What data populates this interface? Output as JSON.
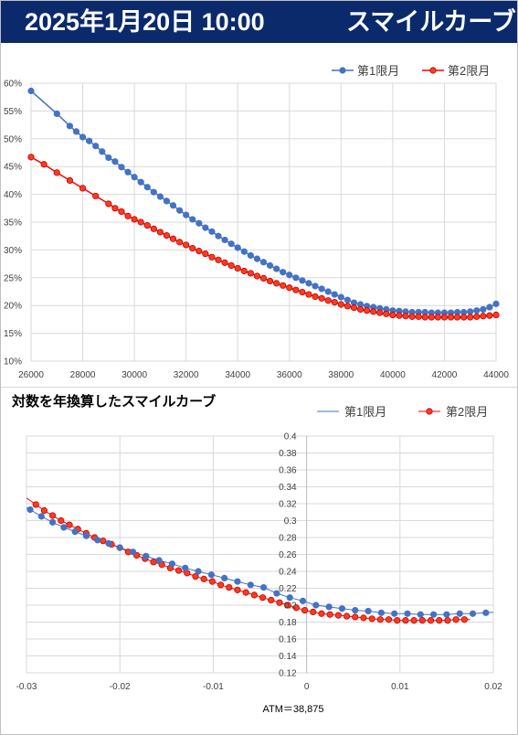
{
  "header": {
    "datetime": "2025年1月20日 10:00",
    "title": "スマイルカーブ"
  },
  "colors": {
    "header_bg": "#0b2a6b",
    "series1": "#4472c4",
    "series2": "#ff0000",
    "series2_fill": "#ff3b1f",
    "grid": "#d9d9d9"
  },
  "chart_data": [
    {
      "type": "line",
      "title": "",
      "legend_position": "top-right",
      "grid": true,
      "xlim": [
        26000,
        44000
      ],
      "ylim": [
        0.1,
        0.6
      ],
      "x_ticks": [
        "26000",
        "28000",
        "30000",
        "32000",
        "34000",
        "36000",
        "38000",
        "40000",
        "42000",
        "44000"
      ],
      "y_ticks": [
        "10%",
        "15%",
        "20%",
        "25%",
        "30%",
        "35%",
        "40%",
        "45%",
        "50%",
        "55%",
        "60%"
      ],
      "series": [
        {
          "name": "第1限月",
          "x": [
            26000,
            27000,
            27500,
            27750,
            28000,
            28250,
            28500,
            28750,
            29000,
            29250,
            29500,
            29750,
            30000,
            30250,
            30500,
            30750,
            31000,
            31250,
            31500,
            31750,
            32000,
            32250,
            32500,
            32750,
            33000,
            33250,
            33500,
            33750,
            34000,
            34250,
            34500,
            34750,
            35000,
            35250,
            35500,
            35750,
            36000,
            36250,
            36500,
            36750,
            37000,
            37250,
            37500,
            37750,
            38000,
            38250,
            38500,
            38750,
            39000,
            39250,
            39500,
            39750,
            40000,
            40250,
            40500,
            40750,
            41000,
            41250,
            41500,
            41750,
            42000,
            42250,
            42500,
            42750,
            43000,
            43250,
            43500,
            43750,
            44000
          ],
          "y": [
            0.586,
            0.545,
            0.523,
            0.513,
            0.503,
            0.496,
            0.487,
            0.477,
            0.466,
            0.459,
            0.449,
            0.44,
            0.431,
            0.422,
            0.413,
            0.404,
            0.396,
            0.388,
            0.38,
            0.371,
            0.363,
            0.355,
            0.348,
            0.34,
            0.333,
            0.325,
            0.318,
            0.311,
            0.304,
            0.297,
            0.29,
            0.284,
            0.278,
            0.272,
            0.266,
            0.26,
            0.255,
            0.25,
            0.245,
            0.24,
            0.235,
            0.23,
            0.225,
            0.22,
            0.215,
            0.21,
            0.205,
            0.202,
            0.199,
            0.197,
            0.195,
            0.193,
            0.191,
            0.19,
            0.189,
            0.188,
            0.188,
            0.188,
            0.187,
            0.187,
            0.187,
            0.187,
            0.188,
            0.188,
            0.189,
            0.191,
            0.193,
            0.197,
            0.203
          ]
        },
        {
          "name": "第2限月",
          "x": [
            26000,
            26500,
            27000,
            27500,
            28000,
            28500,
            29000,
            29250,
            29500,
            29750,
            30000,
            30250,
            30500,
            30750,
            31000,
            31250,
            31500,
            31750,
            32000,
            32250,
            32500,
            32750,
            33000,
            33250,
            33500,
            33750,
            34000,
            34250,
            34500,
            34750,
            35000,
            35250,
            35500,
            35750,
            36000,
            36250,
            36500,
            36750,
            37000,
            37250,
            37500,
            37750,
            38000,
            38250,
            38500,
            38750,
            39000,
            39250,
            39500,
            39750,
            40000,
            40250,
            40500,
            40750,
            41000,
            41250,
            41500,
            41750,
            42000,
            42250,
            42500,
            42750,
            43000,
            43250,
            43500,
            43750,
            44000
          ],
          "y": [
            0.467,
            0.454,
            0.439,
            0.425,
            0.411,
            0.397,
            0.383,
            0.375,
            0.369,
            0.361,
            0.355,
            0.35,
            0.344,
            0.338,
            0.332,
            0.326,
            0.32,
            0.314,
            0.309,
            0.303,
            0.298,
            0.293,
            0.287,
            0.282,
            0.277,
            0.272,
            0.267,
            0.262,
            0.258,
            0.253,
            0.249,
            0.244,
            0.24,
            0.236,
            0.232,
            0.228,
            0.224,
            0.22,
            0.216,
            0.213,
            0.209,
            0.206,
            0.202,
            0.199,
            0.196,
            0.193,
            0.191,
            0.189,
            0.187,
            0.185,
            0.183,
            0.182,
            0.181,
            0.18,
            0.18,
            0.179,
            0.179,
            0.179,
            0.179,
            0.179,
            0.179,
            0.179,
            0.179,
            0.18,
            0.181,
            0.182,
            0.183
          ]
        }
      ]
    },
    {
      "type": "scatter",
      "title": "対数を年換算したスマイルカーブ",
      "legend_position": "top-right",
      "grid": true,
      "xlim": [
        -0.03,
        0.02
      ],
      "ylim": [
        0.12,
        0.4
      ],
      "x_ticks": [
        "-0.03",
        "-0.02",
        "-0.01",
        "0",
        "0.01",
        "0.02"
      ],
      "y_ticks": [
        "0.12",
        "0.14",
        "0.16",
        "0.18",
        "0.2",
        "0.22",
        "0.24",
        "0.26",
        "0.28",
        "0.3",
        "0.32",
        "0.34",
        "0.36",
        "0.38",
        "0.4"
      ],
      "annotation": "ATM＝38,875",
      "series": [
        {
          "name": "第1限月",
          "line_range": [
            -0.03,
            0.02
          ],
          "x": [
            -0.0296,
            -0.0284,
            -0.0272,
            -0.026,
            -0.0248,
            -0.0236,
            -0.0224,
            -0.0212,
            -0.02,
            -0.0186,
            -0.0172,
            -0.0158,
            -0.0144,
            -0.013,
            -0.0116,
            -0.0102,
            -0.0088,
            -0.0074,
            -0.006,
            -0.0046,
            -0.0032,
            -0.0018,
            -0.0004,
            0.001,
            0.0024,
            0.0038,
            0.0052,
            0.0066,
            0.008,
            0.0094,
            0.0108,
            0.0122,
            0.0136,
            0.015,
            0.0164,
            0.0178,
            0.0192
          ],
          "y": [
            0.313,
            0.305,
            0.298,
            0.292,
            0.287,
            0.282,
            0.277,
            0.273,
            0.268,
            0.263,
            0.258,
            0.253,
            0.249,
            0.244,
            0.24,
            0.236,
            0.232,
            0.228,
            0.224,
            0.221,
            0.214,
            0.209,
            0.205,
            0.2,
            0.198,
            0.196,
            0.194,
            0.193,
            0.191,
            0.19,
            0.19,
            0.189,
            0.189,
            0.189,
            0.19,
            0.19,
            0.191
          ]
        },
        {
          "name": "第2限月",
          "line_range": [
            -0.03,
            0.0175
          ],
          "x": [
            -0.029,
            -0.0281,
            -0.0272,
            -0.0263,
            -0.0254,
            -0.0245,
            -0.0236,
            -0.0227,
            -0.0218,
            -0.0209,
            -0.02,
            -0.0191,
            -0.0182,
            -0.0173,
            -0.0164,
            -0.0155,
            -0.0146,
            -0.0137,
            -0.0128,
            -0.0119,
            -0.011,
            -0.0101,
            -0.0092,
            -0.0083,
            -0.0074,
            -0.0065,
            -0.0056,
            -0.0047,
            -0.0038,
            -0.0029,
            -0.002,
            -0.0011,
            -0.0002,
            0.0007,
            0.0016,
            0.0025,
            0.0034,
            0.0043,
            0.0052,
            0.0061,
            0.007,
            0.0079,
            0.0088,
            0.0097,
            0.0106,
            0.0115,
            0.0124,
            0.0133,
            0.0142,
            0.0151,
            0.016,
            0.0169
          ],
          "y": [
            0.319,
            0.312,
            0.306,
            0.3,
            0.295,
            0.29,
            0.285,
            0.28,
            0.276,
            0.272,
            0.268,
            0.263,
            0.259,
            0.255,
            0.251,
            0.248,
            0.244,
            0.241,
            0.238,
            0.234,
            0.231,
            0.228,
            0.224,
            0.221,
            0.218,
            0.215,
            0.212,
            0.209,
            0.206,
            0.203,
            0.2,
            0.197,
            0.194,
            0.192,
            0.19,
            0.189,
            0.188,
            0.187,
            0.186,
            0.185,
            0.184,
            0.183,
            0.183,
            0.182,
            0.182,
            0.182,
            0.182,
            0.182,
            0.182,
            0.182,
            0.183,
            0.183
          ]
        }
      ]
    }
  ]
}
